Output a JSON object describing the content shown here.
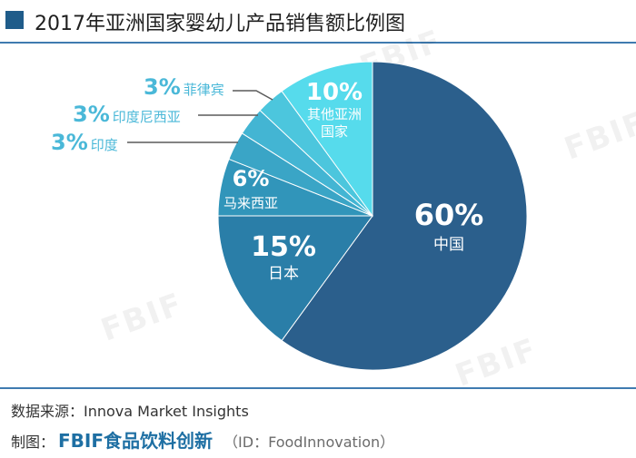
{
  "header": {
    "title": "2017年亚洲国家婴幼儿产品销售额比例图"
  },
  "chart_data": {
    "type": "pie",
    "title": "2017年亚洲国家婴幼儿产品销售额比例图",
    "unit": "%",
    "slices": [
      {
        "label": "中国",
        "value": 60,
        "value_label": "60%",
        "color": "#2b5f8c"
      },
      {
        "label": "日本",
        "value": 15,
        "value_label": "15%",
        "color": "#2a7ea8"
      },
      {
        "label": "马来西亚",
        "value": 6,
        "value_label": "6%",
        "color": "#3195ba"
      },
      {
        "label": "印度",
        "value": 3,
        "value_label": "3%",
        "color": "#3aa5c6"
      },
      {
        "label": "印度尼西亚",
        "value": 3,
        "value_label": "3%",
        "color": "#43b5d3"
      },
      {
        "label": "菲律宾",
        "value": 3,
        "value_label": "3%",
        "color": "#4cc6dd"
      },
      {
        "label": "其他亚洲国家",
        "label_lines": [
          "其他亚洲",
          "国家"
        ],
        "value": 10,
        "value_label": "10%",
        "color": "#56dbec"
      }
    ]
  },
  "footer": {
    "source": "数据来源：Innova Market Insights",
    "credit_label": "制图：",
    "credit_brand": "FBIF食品饮料创新",
    "credit_id": "（ID：FoodInnovation）"
  },
  "watermark_text": "FBIF",
  "colors": {
    "accent": "#1f5c8a",
    "brand": "#1e6fa3",
    "rule": "#3f7bb0",
    "callout_text": "#4ab8d8",
    "leader": "#5a5a5a"
  }
}
